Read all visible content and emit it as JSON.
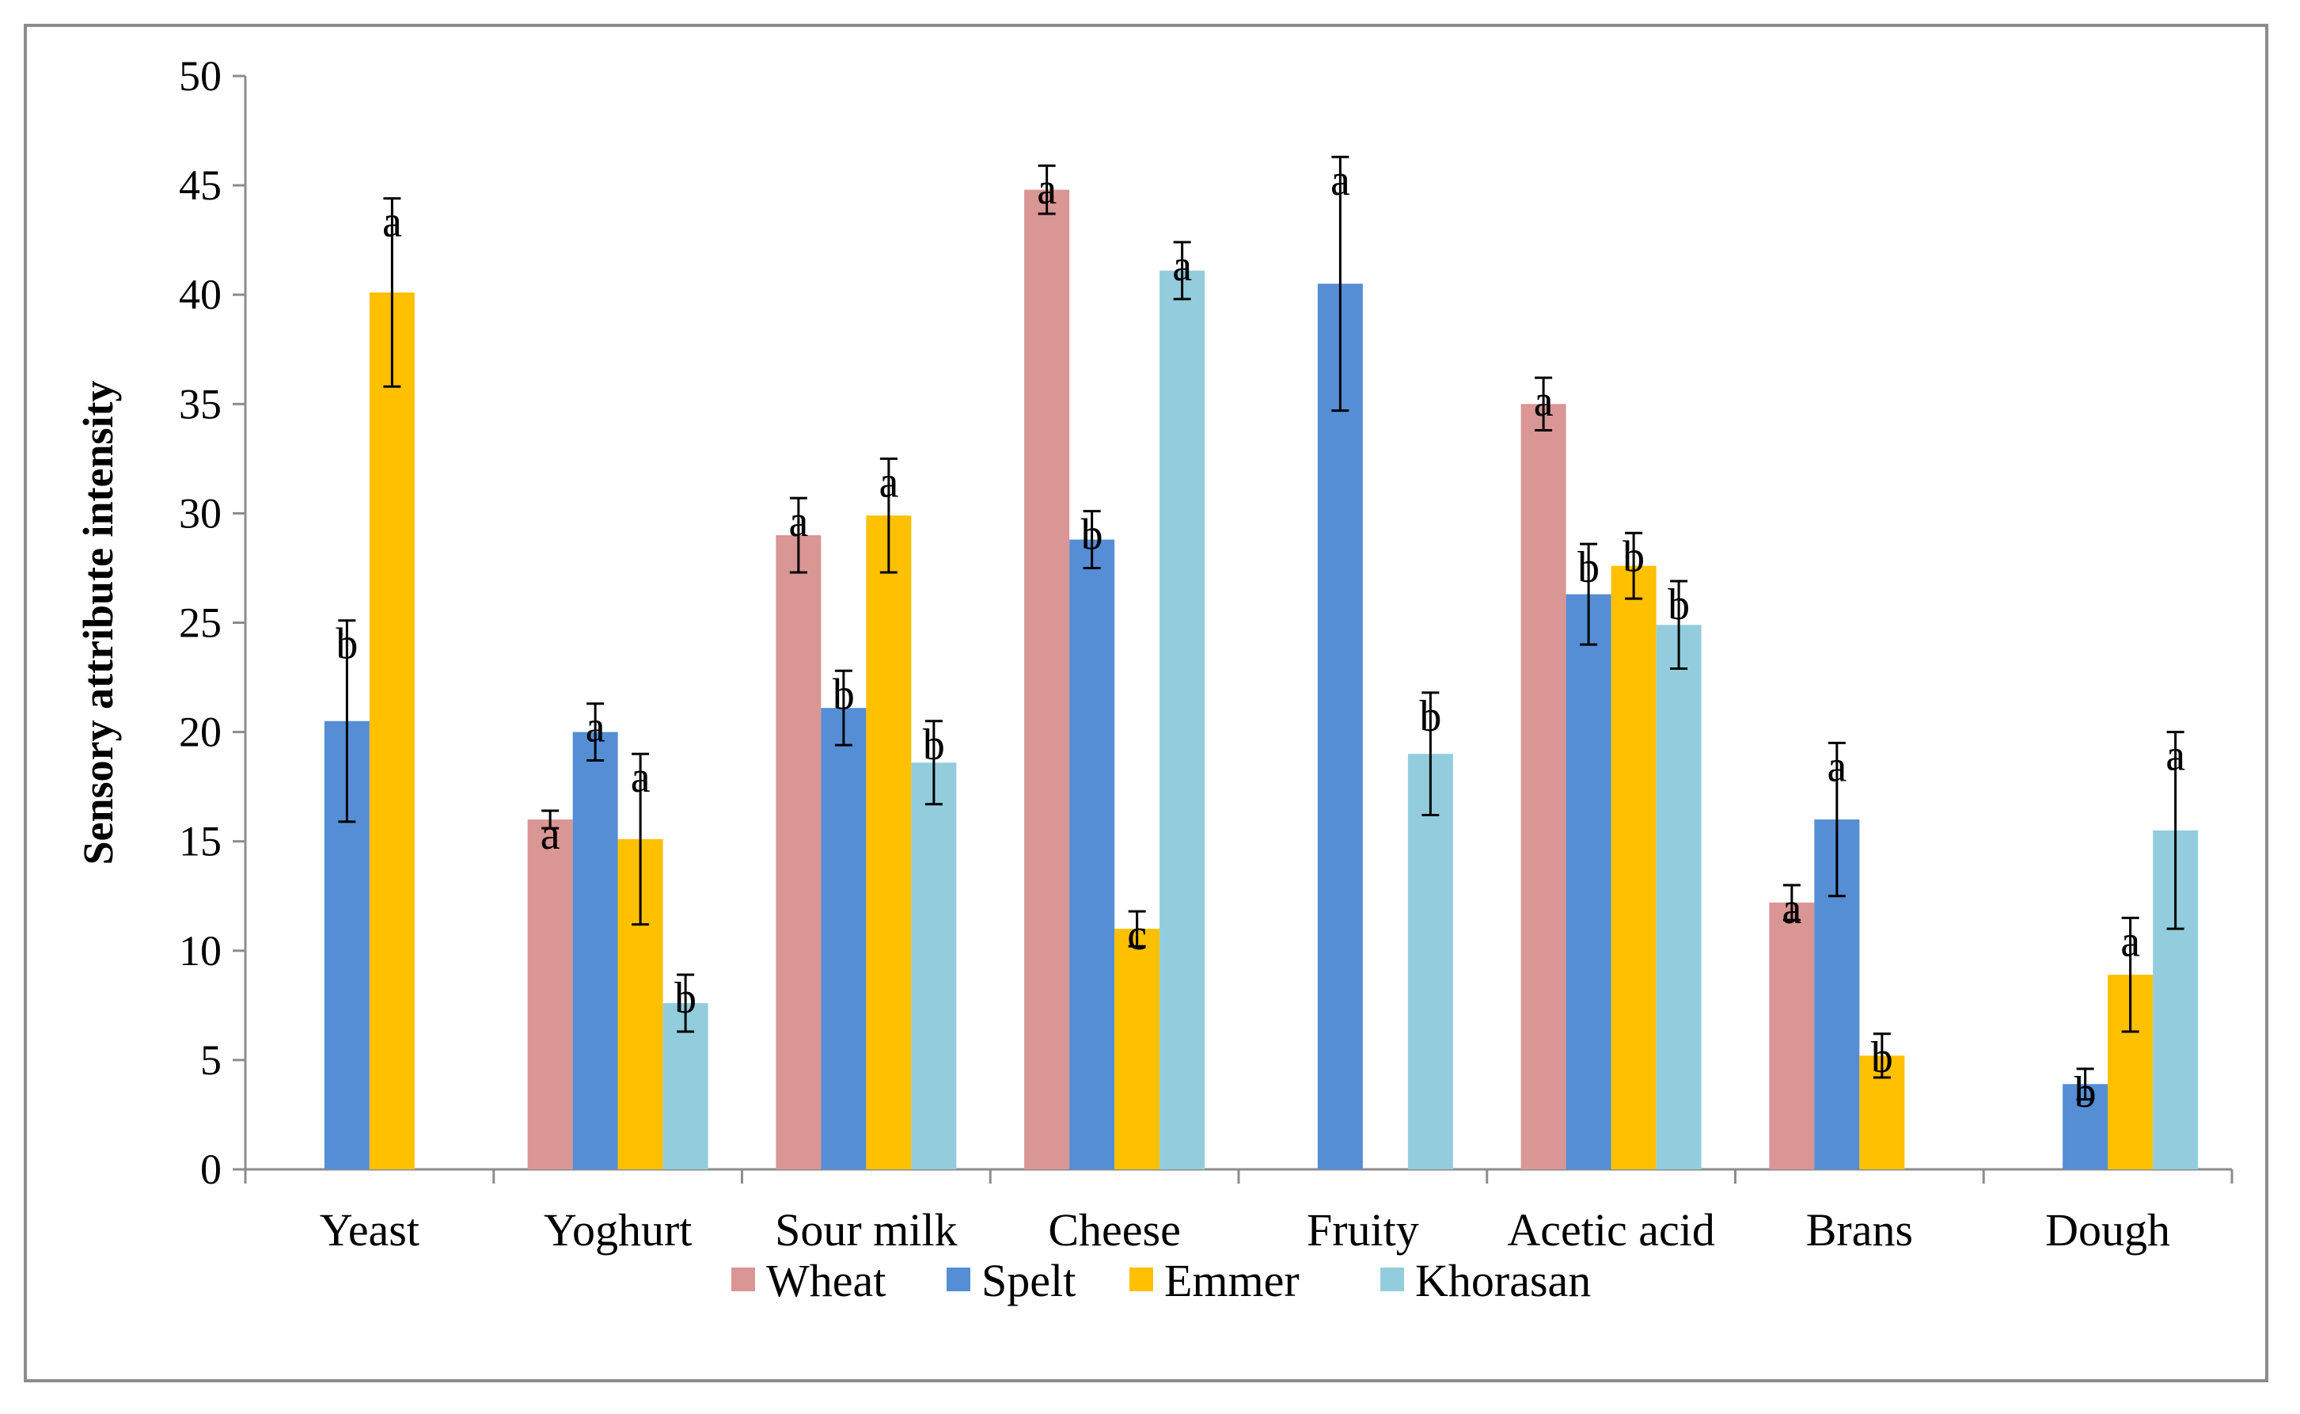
{
  "chart_data": {
    "type": "bar",
    "title": "",
    "xlabel": "",
    "ylabel": "Sensory attribute intensity",
    "ylim": [
      0,
      50
    ],
    "yticks": [
      0,
      5,
      10,
      15,
      20,
      25,
      30,
      35,
      40,
      45,
      50
    ],
    "grid": false,
    "legend_position": "bottom",
    "categories": [
      "Yeast",
      "Yoghurt",
      "Sour milk",
      "Cheese",
      "Fruity",
      "Acetic acid",
      "Brans",
      "Dough"
    ],
    "series": [
      {
        "name": "Wheat",
        "color": "#d99694",
        "values": [
          null,
          16.0,
          29.0,
          44.8,
          null,
          35.0,
          12.2,
          null
        ],
        "errors": [
          null,
          0.4,
          1.7,
          1.1,
          null,
          1.2,
          0.8,
          null
        ],
        "letters": [
          null,
          "a",
          "a",
          "a",
          null,
          "a",
          "a",
          null
        ]
      },
      {
        "name": "Spelt",
        "color": "#558ed5",
        "values": [
          20.5,
          20.0,
          21.1,
          28.8,
          40.5,
          26.3,
          16.0,
          3.9
        ],
        "errors": [
          4.6,
          1.3,
          1.7,
          1.3,
          5.8,
          2.3,
          3.5,
          0.7
        ],
        "letters": [
          "b",
          "a",
          "b",
          "b",
          "a",
          "b",
          "a",
          "b"
        ]
      },
      {
        "name": "Emmer",
        "color": "#ffc000",
        "values": [
          40.1,
          15.1,
          29.9,
          11.0,
          null,
          27.6,
          5.2,
          8.9
        ],
        "errors": [
          4.3,
          3.9,
          2.6,
          0.8,
          null,
          1.5,
          1.0,
          2.6
        ],
        "letters": [
          "a",
          "a",
          "a",
          "c",
          null,
          "b",
          "b",
          "a"
        ]
      },
      {
        "name": "Khorasan",
        "color": "#93cddd",
        "values": [
          null,
          7.6,
          18.6,
          41.1,
          19.0,
          24.9,
          null,
          15.5
        ],
        "errors": [
          null,
          1.3,
          1.9,
          1.3,
          2.8,
          2.0,
          null,
          4.5
        ],
        "letters": [
          null,
          "b",
          "b",
          "a",
          "b",
          "b",
          null,
          "a"
        ]
      }
    ]
  }
}
